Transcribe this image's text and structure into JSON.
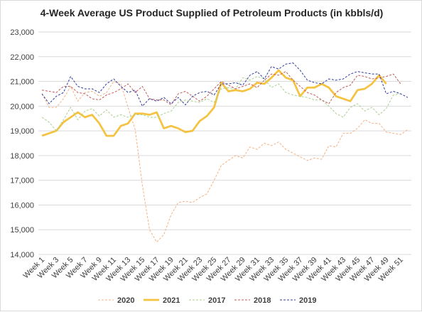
{
  "chart_data": {
    "type": "line",
    "title": "4-Week Average US Product Supplied of Petroleum Products (in kbbls/d)",
    "xlabel": "",
    "ylabel": "",
    "ylim": [
      14000,
      23000
    ],
    "yticks": [
      "14,000",
      "15,000",
      "16,000",
      "17,000",
      "18,000",
      "19,000",
      "20,000",
      "21,000",
      "22,000",
      "23,000"
    ],
    "x": [
      "Week 1",
      "Week 2",
      "Week 3",
      "Week 4",
      "Week 5",
      "Week 6",
      "Week 7",
      "Week 8",
      "Week 9",
      "Week 10",
      "Week 11",
      "Week 12",
      "Week 13",
      "Week 14",
      "Week 15",
      "Week 16",
      "Week 17",
      "Week 18",
      "Week 19",
      "Week 20",
      "Week 21",
      "Week 22",
      "Week 23",
      "Week 24",
      "Week 25",
      "Week 26",
      "Week 27",
      "Week 28",
      "Week 29",
      "Week 30",
      "Week 31",
      "Week 32",
      "Week 33",
      "Week 34",
      "Week 35",
      "Week 36",
      "Week 37",
      "Week 38",
      "Week 39",
      "Week 40",
      "Week 41",
      "Week 42",
      "Week 43",
      "Week 44",
      "Week 45",
      "Week 46",
      "Week 47",
      "Week 48",
      "Week 49",
      "Week 50",
      "Week 51",
      "Week 52"
    ],
    "xtick_labels": [
      "Week 1",
      "Week 3",
      "Week 5",
      "Week 7",
      "Week 9",
      "Week 11",
      "Week 13",
      "Week 15",
      "Week 17",
      "Week 19",
      "Week 21",
      "Week 23",
      "Week 25",
      "Week 27",
      "Week 29",
      "Week 31",
      "Week 33",
      "Week 35",
      "Week 37",
      "Week 39",
      "Week 41",
      "Week 43",
      "Week 45",
      "Week 47",
      "Week 49",
      "Week 51"
    ],
    "grid": "horizontal",
    "legend_position": "bottom",
    "series": [
      {
        "name": "2020",
        "color": "#f4b183",
        "style": "dashed",
        "values": [
          20500,
          19950,
          19950,
          20300,
          20800,
          20200,
          20550,
          20600,
          20400,
          20550,
          21000,
          20900,
          19950,
          19050,
          16800,
          15000,
          14500,
          14800,
          15600,
          16100,
          16150,
          16100,
          16300,
          16450,
          17000,
          17600,
          17800,
          18000,
          17900,
          18350,
          18250,
          18500,
          18400,
          18550,
          18250,
          18100,
          17950,
          17800,
          17900,
          17850,
          18400,
          18350,
          18900,
          18900,
          19100,
          19450,
          19300,
          19300,
          18950,
          18900,
          18850,
          19050
        ]
      },
      {
        "name": "2021",
        "color": "#f5c342",
        "style": "solid",
        "values": [
          18800,
          18900,
          19000,
          19350,
          19550,
          19750,
          19550,
          19650,
          19300,
          18800,
          18800,
          19200,
          19300,
          19700,
          19700,
          19650,
          19750,
          19100,
          19200,
          19100,
          18950,
          19000,
          19400,
          19600,
          19950,
          20950,
          20600,
          20650,
          20600,
          20700,
          20950,
          20900,
          21150,
          21450,
          21150,
          21050,
          20400,
          20750,
          20750,
          20900,
          20750,
          20400,
          20300,
          20200,
          20650,
          20700,
          20900,
          21250,
          20900,
          null,
          null,
          null
        ]
      },
      {
        "name": "2017",
        "color": "#a9d18e",
        "style": "dashed",
        "values": [
          19550,
          19350,
          19000,
          19450,
          19950,
          19450,
          19800,
          19900,
          19600,
          19850,
          19550,
          19650,
          19550,
          19650,
          19650,
          19550,
          19550,
          19700,
          19800,
          20150,
          20250,
          20200,
          20150,
          20300,
          20150,
          20700,
          20750,
          20700,
          21150,
          21050,
          21200,
          21100,
          20750,
          20900,
          20550,
          20450,
          20400,
          20350,
          20250,
          20250,
          20000,
          19700,
          19550,
          19950,
          20100,
          19800,
          19950,
          19650,
          19900,
          20450,
          20500,
          null
        ]
      },
      {
        "name": "2018",
        "color": "#c55a5a",
        "style": "dashed",
        "values": [
          20650,
          20600,
          20550,
          20800,
          20800,
          20550,
          20500,
          20300,
          20250,
          20450,
          20550,
          20700,
          20900,
          20550,
          20800,
          20300,
          20250,
          20250,
          20050,
          20500,
          20600,
          20400,
          20200,
          20400,
          20700,
          21000,
          20850,
          20700,
          20800,
          20900,
          20750,
          21050,
          21300,
          21250,
          21400,
          21050,
          20800,
          20550,
          20450,
          20250,
          20100,
          20550,
          20750,
          20850,
          21250,
          21200,
          21100,
          21150,
          21200,
          21300,
          20900,
          null
        ]
      },
      {
        "name": "2019",
        "color": "#2f3e9e",
        "style": "dashed",
        "values": [
          20500,
          20100,
          20400,
          20550,
          21200,
          20800,
          20700,
          20700,
          20550,
          20900,
          21100,
          20800,
          20550,
          20650,
          20000,
          20300,
          20200,
          20350,
          20100,
          20350,
          20050,
          20400,
          20550,
          20600,
          20450,
          20900,
          20900,
          20950,
          20850,
          21250,
          21400,
          21100,
          21600,
          21500,
          21700,
          21750,
          21450,
          21050,
          20950,
          20900,
          21100,
          21050,
          21100,
          21300,
          21400,
          21350,
          21300,
          21300,
          20500,
          20600,
          20500,
          20350
        ]
      }
    ]
  }
}
